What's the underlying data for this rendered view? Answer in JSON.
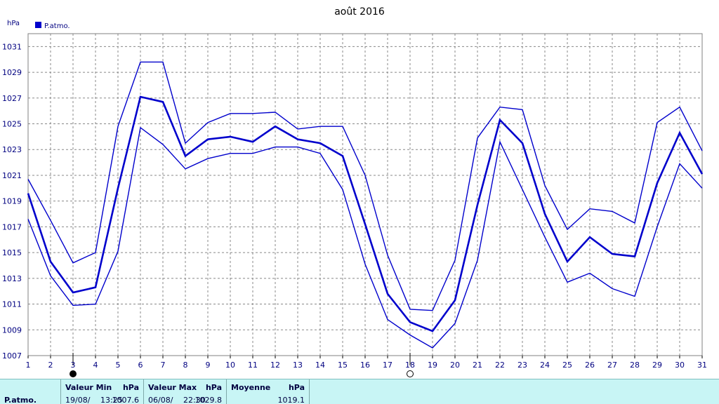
{
  "chart_data": {
    "type": "line",
    "title": "août 2016",
    "ylabel": "hPa",
    "ylim": [
      1007,
      1032
    ],
    "yticks": [
      1007,
      1009,
      1011,
      1013,
      1015,
      1017,
      1019,
      1021,
      1023,
      1025,
      1027,
      1029,
      1031
    ],
    "x": [
      1,
      2,
      3,
      4,
      5,
      6,
      7,
      8,
      9,
      10,
      11,
      12,
      13,
      14,
      15,
      16,
      17,
      18,
      19,
      20,
      21,
      22,
      23,
      24,
      25,
      26,
      27,
      28,
      29,
      30,
      31
    ],
    "xlim": [
      1,
      31
    ],
    "grid": true,
    "legend": {
      "position": "top-left",
      "entries": [
        "P.atmo."
      ]
    },
    "series": [
      {
        "name": "P.atmo.",
        "role": "max",
        "values": [
          1020.7,
          1017.5,
          1014.2,
          1015.0,
          1024.8,
          1029.8,
          1029.8,
          1023.5,
          1025.1,
          1025.8,
          1025.8,
          1025.9,
          1024.6,
          1024.8,
          1024.8,
          1021.0,
          1014.8,
          1010.6,
          1010.5,
          1014.4,
          1023.9,
          1026.3,
          1026.1,
          1020.2,
          1016.8,
          1018.4,
          1018.2,
          1017.3,
          1025.1,
          1026.3,
          1022.9
        ]
      },
      {
        "name": "P.atmo.",
        "role": "mean",
        "values": [
          1019.6,
          1014.3,
          1011.9,
          1012.3,
          1020.0,
          1027.1,
          1026.7,
          1022.5,
          1023.8,
          1024.0,
          1023.6,
          1024.8,
          1023.8,
          1023.5,
          1022.5,
          1017.2,
          1011.8,
          1009.6,
          1008.9,
          1011.3,
          1018.7,
          1025.3,
          1023.5,
          1018.0,
          1014.3,
          1016.2,
          1014.9,
          1014.7,
          1020.4,
          1024.3,
          1021.1
        ]
      },
      {
        "name": "P.atmo.",
        "role": "min",
        "values": [
          1017.6,
          1013.2,
          1010.9,
          1011.0,
          1015.1,
          1024.7,
          1023.4,
          1021.5,
          1022.3,
          1022.7,
          1022.7,
          1023.2,
          1023.2,
          1022.7,
          1019.9,
          1014.1,
          1009.8,
          1008.6,
          1007.6,
          1009.5,
          1014.4,
          1023.6,
          1019.9,
          1016.2,
          1012.7,
          1013.4,
          1012.2,
          1011.6,
          1017.0,
          1021.9,
          1020.0
        ]
      }
    ],
    "moon_phases": [
      {
        "day": 3,
        "icon": "new-moon-icon"
      },
      {
        "day": 18,
        "icon": "full-moon-icon"
      }
    ],
    "colors": {
      "series": "#0000cc",
      "grid": "#888888",
      "text": "#000080"
    }
  },
  "stats": {
    "row_label": "P.atmo.",
    "min": {
      "header": "Valeur Min",
      "unit": "hPa",
      "date": "19/08/",
      "time": "13:25",
      "value": "1007.6"
    },
    "max": {
      "header": "Valeur Max",
      "unit": "hPa",
      "date": "06/08/",
      "time": "22:30",
      "value": "1029.8"
    },
    "mean": {
      "header": "Moyenne",
      "unit": "hPa",
      "value": "1019.1"
    }
  }
}
